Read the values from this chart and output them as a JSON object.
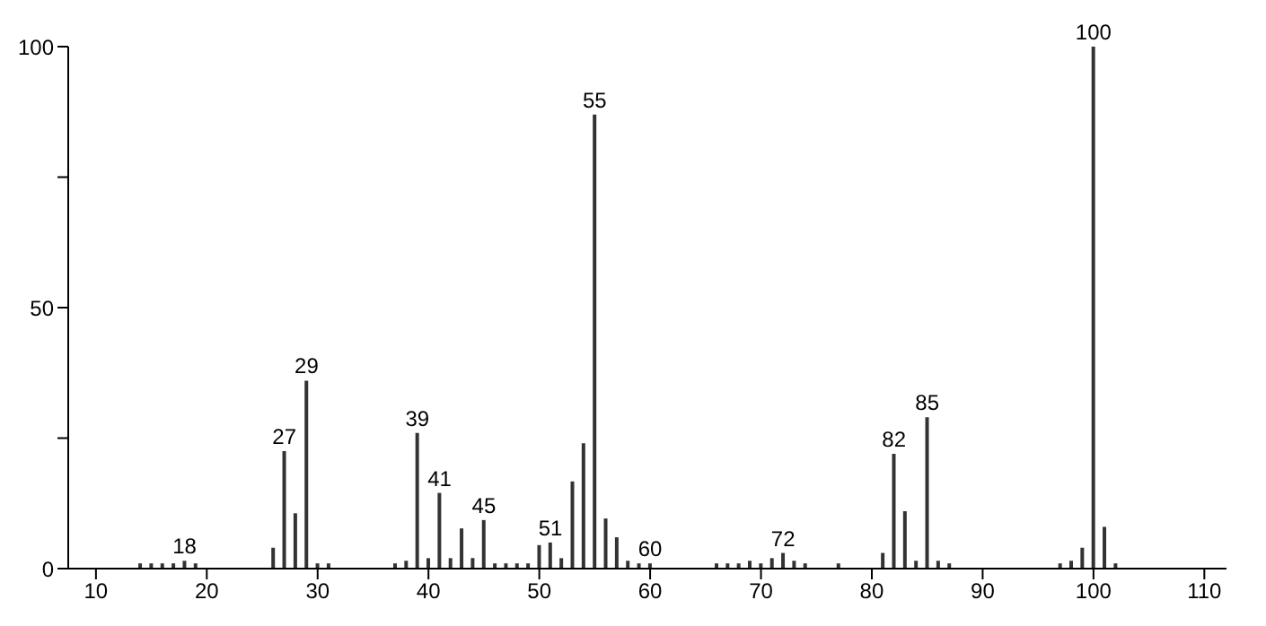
{
  "chart_data": {
    "type": "bar",
    "x": [
      14,
      15,
      16,
      17,
      18,
      19,
      26,
      27,
      28,
      29,
      30,
      31,
      37,
      38,
      39,
      40,
      41,
      42,
      43,
      44,
      45,
      46,
      47,
      48,
      49,
      50,
      51,
      52,
      53,
      54,
      55,
      56,
      57,
      58,
      59,
      60,
      66,
      67,
      68,
      69,
      70,
      71,
      72,
      73,
      74,
      77,
      81,
      82,
      83,
      84,
      85,
      86,
      87,
      97,
      98,
      99,
      100,
      101,
      102
    ],
    "series": [
      {
        "color": "#333333",
        "values": [
          1,
          1,
          1,
          1,
          1.5,
          1,
          4,
          22.5,
          10.6,
          36,
          1,
          1,
          1,
          1.5,
          26,
          2,
          14.5,
          2,
          7.7,
          2,
          9.3,
          1,
          1,
          1,
          1,
          4.5,
          5,
          2,
          16.7,
          24,
          87,
          9.6,
          6,
          1.5,
          1,
          1,
          1,
          1,
          1,
          1.5,
          1,
          2,
          3,
          1.5,
          1,
          1,
          3,
          22,
          11,
          1.5,
          29,
          1.5,
          1,
          1,
          1.5,
          4,
          100,
          8,
          1
        ]
      }
    ],
    "xlim": [
      7.5,
      112
    ],
    "xticks": [
      10,
      20,
      30,
      40,
      50,
      60,
      70,
      80,
      90,
      100,
      110
    ],
    "ylim": [
      0,
      100
    ],
    "yticks": [
      0,
      {
        "value": 25,
        "label": null
      },
      50,
      {
        "value": 75,
        "label": null
      },
      100
    ],
    "grid": false,
    "annotations": [
      {
        "text": "18",
        "x": 18,
        "y": 1.5
      },
      {
        "text": "27",
        "x": 27,
        "y": 22.5
      },
      {
        "text": "29",
        "x": 29,
        "y": 36
      },
      {
        "text": "39",
        "x": 39,
        "y": 26
      },
      {
        "text": "41",
        "x": 41,
        "y": 14.5
      },
      {
        "text": "45",
        "x": 45,
        "y": 9.3
      },
      {
        "text": "51",
        "x": 51,
        "y": 5
      },
      {
        "text": "55",
        "x": 55,
        "y": 87
      },
      {
        "text": "60",
        "x": 60,
        "y": 1
      },
      {
        "text": "72",
        "x": 72,
        "y": 3
      },
      {
        "text": "82",
        "x": 82,
        "y": 22
      },
      {
        "text": "85",
        "x": 85,
        "y": 29
      },
      {
        "text": "100",
        "x": 100,
        "y": 100
      }
    ]
  }
}
